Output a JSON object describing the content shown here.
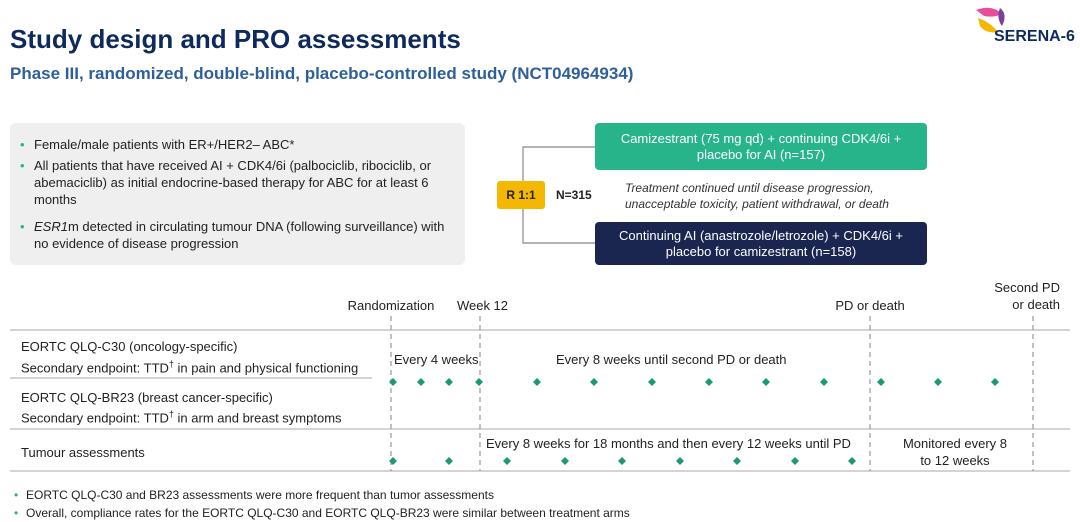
{
  "header": {
    "title": "Study design and PRO assessments",
    "subtitle": "Phase III, randomized, double-blind, placebo-controlled study (NCT04964934)",
    "logo": "SERENA-6"
  },
  "eligibility": {
    "bullets": [
      "Female/male patients with ER+/HER2– ABC*",
      "All patients that have received AI + CDK4/6i (palbociclib, ribociclib, or abemaciclib) as initial endocrine-based therapy for ABC for at least 6 months"
    ],
    "esr1_bullet": {
      "italic": "ESR1",
      "rest": "m detected in circulating tumour DNA (following surveillance) with no evidence of disease progression"
    }
  },
  "randomization": {
    "ratio": "R 1:1",
    "n": "N=315"
  },
  "arms": [
    "Camizestrant (75 mg qd) + continuing CDK4/6i + placebo for AI (n=157)",
    "Continuing AI (anastrozole/letrozole) + CDK4/6i + placebo for camizestrant (n=158)"
  ],
  "treatment_note": "Treatment continued until disease progression, unacceptable toxicity, patient withdrawal, or death",
  "timeline": {
    "milestones": [
      "Randomization",
      "Week 12",
      "PD or death",
      "Second PD or death"
    ],
    "rows": [
      {
        "label": "EORTC QLQ-C30 (oncology-specific)",
        "endpoint": {
          "prefix": "Secondary endpoint: TTD",
          "sup": "†",
          "suffix": " in pain and physical functioning"
        }
      },
      {
        "label": "EORTC QLQ-BR23 (breast cancer-specific)",
        "endpoint": {
          "prefix": "Secondary endpoint: TTD",
          "sup": "†",
          "suffix": " in arm and breast symptoms"
        }
      },
      {
        "label": "Tumour assessments"
      }
    ],
    "schedules": [
      "Every 4 weeks",
      "Every 8 weeks until second PD or death",
      "Every 8 weeks for 18 months and then every 12 weeks until PD",
      "Monitored every 8 to 12 weeks"
    ]
  },
  "footer": [
    "EORTC QLQ-C30 and BR23 assessments were more frequent than tumor assessments",
    "Overall, compliance rates for the EORTC QLQ-C30 and EORTC QLQ-BR23 were similar between treatment arms"
  ]
}
